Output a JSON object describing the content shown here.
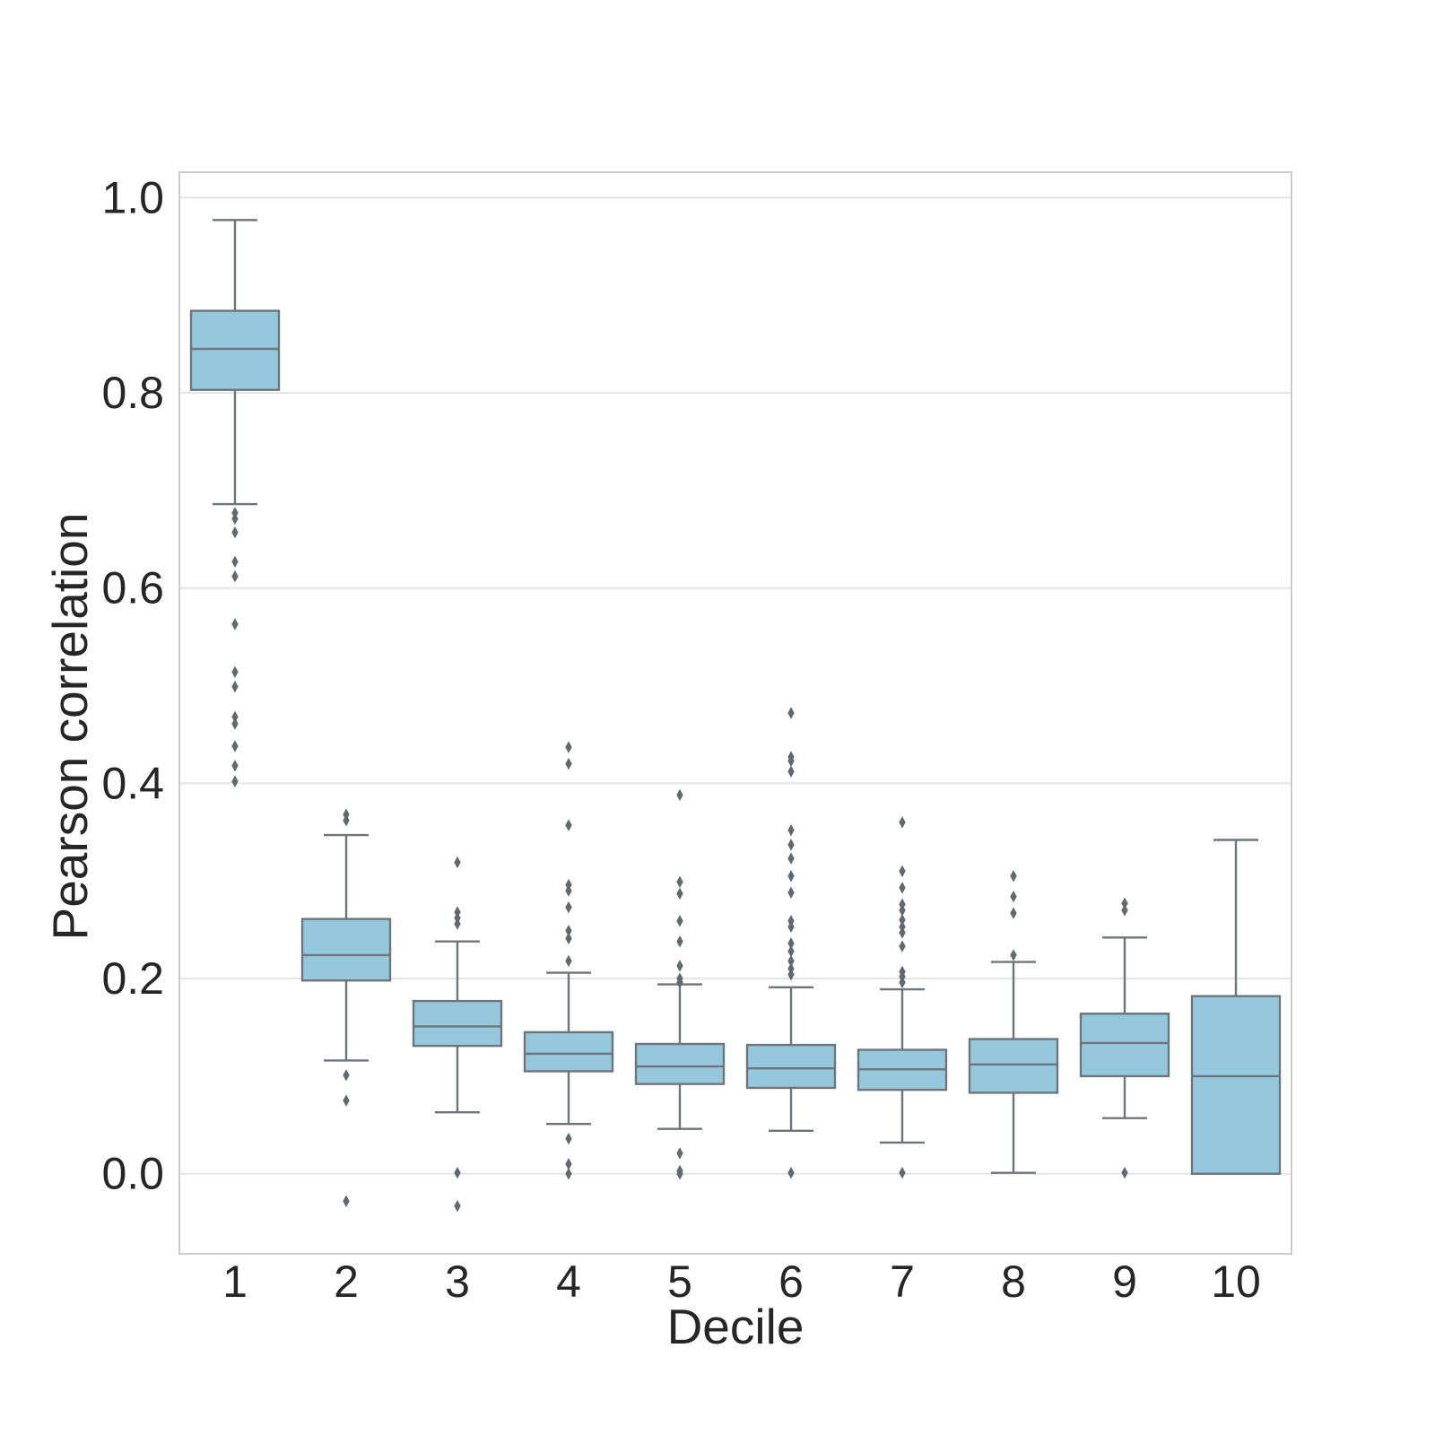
{
  "figure": {
    "xlabel": "Decile",
    "ylabel": "Pearson correlation"
  },
  "chart_data": {
    "type": "boxplot",
    "title": "",
    "xlabel": "Decile",
    "ylabel": "Pearson correlation",
    "categories": [
      "1",
      "2",
      "3",
      "4",
      "5",
      "6",
      "7",
      "8",
      "9",
      "10"
    ],
    "ylim": [
      -0.082,
      1.026
    ],
    "yticks": [
      0.0,
      0.2,
      0.4,
      0.6,
      0.8,
      1.0
    ],
    "ytick_labels": [
      "0.0",
      "0.2",
      "0.4",
      "0.6",
      "0.8",
      "1.0"
    ],
    "grid": true,
    "legend": false,
    "series": [
      {
        "category": "1",
        "whisker_low": 0.686,
        "q1": 0.803,
        "median": 0.845,
        "q3": 0.884,
        "whisker_high": 0.977,
        "outliers": [
          0.677,
          0.671,
          0.657,
          0.627,
          0.612,
          0.563,
          0.514,
          0.499,
          0.468,
          0.461,
          0.438,
          0.418,
          0.402
        ]
      },
      {
        "category": "2",
        "whisker_low": 0.116,
        "q1": 0.198,
        "median": 0.224,
        "q3": 0.261,
        "whisker_high": 0.347,
        "outliers": [
          0.368,
          0.362,
          0.101,
          0.075,
          -0.028
        ]
      },
      {
        "category": "3",
        "whisker_low": 0.063,
        "q1": 0.131,
        "median": 0.151,
        "q3": 0.177,
        "whisker_high": 0.238,
        "outliers": [
          0.319,
          0.268,
          0.262,
          0.256,
          0.001,
          -0.033
        ]
      },
      {
        "category": "4",
        "whisker_low": 0.051,
        "q1": 0.105,
        "median": 0.123,
        "q3": 0.145,
        "whisker_high": 0.206,
        "outliers": [
          0.437,
          0.42,
          0.357,
          0.296,
          0.29,
          0.273,
          0.249,
          0.241,
          0.218,
          0.036,
          0.01,
          0.0
        ]
      },
      {
        "category": "5",
        "whisker_low": 0.046,
        "q1": 0.092,
        "median": 0.11,
        "q3": 0.133,
        "whisker_high": 0.194,
        "outliers": [
          0.388,
          0.299,
          0.287,
          0.259,
          0.238,
          0.213,
          0.2,
          0.196,
          0.021,
          0.003,
          0.0
        ]
      },
      {
        "category": "6",
        "whisker_low": 0.044,
        "q1": 0.088,
        "median": 0.108,
        "q3": 0.132,
        "whisker_high": 0.191,
        "outliers": [
          0.472,
          0.427,
          0.423,
          0.412,
          0.352,
          0.337,
          0.323,
          0.305,
          0.288,
          0.259,
          0.253,
          0.236,
          0.228,
          0.218,
          0.21,
          0.204,
          0.001
        ]
      },
      {
        "category": "7",
        "whisker_low": 0.032,
        "q1": 0.086,
        "median": 0.107,
        "q3": 0.127,
        "whisker_high": 0.189,
        "outliers": [
          0.36,
          0.31,
          0.293,
          0.276,
          0.27,
          0.26,
          0.253,
          0.247,
          0.233,
          0.207,
          0.202,
          0.196,
          0.001
        ]
      },
      {
        "category": "8",
        "whisker_low": 0.001,
        "q1": 0.083,
        "median": 0.112,
        "q3": 0.138,
        "whisker_high": 0.217,
        "outliers": [
          0.305,
          0.284,
          0.267,
          0.224
        ]
      },
      {
        "category": "9",
        "whisker_low": 0.057,
        "q1": 0.1,
        "median": 0.134,
        "q3": 0.164,
        "whisker_high": 0.242,
        "outliers": [
          0.277,
          0.27,
          0.001
        ]
      },
      {
        "category": "10",
        "whisker_low": 0.0,
        "q1": 0.0,
        "median": 0.1,
        "q3": 0.182,
        "whisker_high": 0.342,
        "outliers": []
      }
    ],
    "colors": {
      "box_fill": "#95c8dd",
      "box_edge": "#6d757b",
      "whisker": "#6d757b",
      "median": "#6d757b",
      "outlier": "#60696f",
      "gridline": "#e2e2e2",
      "spine": "#cccccc",
      "text": "#262626",
      "background": "#ffffff"
    }
  }
}
